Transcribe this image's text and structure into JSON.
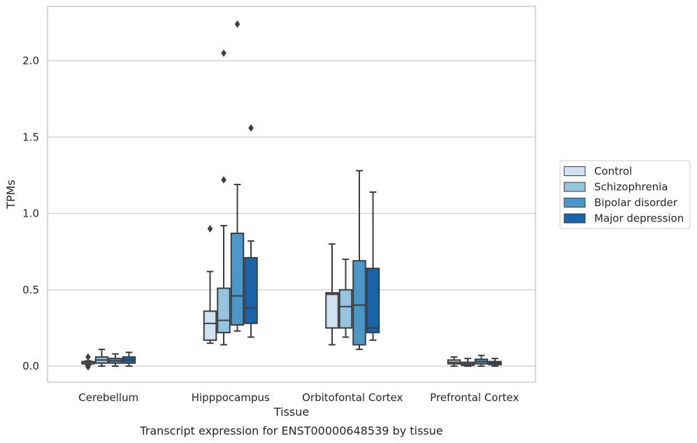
{
  "chart_data": {
    "type": "box",
    "title": "",
    "caption": "Transcript expression for ENST00000648539 by tissue",
    "xlabel": "Tissue",
    "ylabel": "TPMs",
    "ylim": [
      -0.11,
      2.35
    ],
    "yticks": [
      0.0,
      0.5,
      1.0,
      1.5,
      2.0
    ],
    "ytick_labels": [
      "0.0",
      "0.5",
      "1.0",
      "1.5",
      "2.0"
    ],
    "grid": "horizontal",
    "legend_position": "right",
    "categories": [
      "Cerebellum",
      "Hipppocampus",
      "Orbitofontal Cortex",
      "Prefrontal Cortex"
    ],
    "series": [
      {
        "name": "Control",
        "color": "#d0e1f2",
        "boxes": [
          {
            "whislo": 0.01,
            "q1": 0.015,
            "med": 0.025,
            "q3": 0.03,
            "whishi": 0.035,
            "fliers": [
              0.06,
              0.0,
              -0.005
            ]
          },
          {
            "whislo": 0.15,
            "q1": 0.17,
            "med": 0.28,
            "q3": 0.36,
            "whishi": 0.62,
            "fliers": [
              0.9
            ]
          },
          {
            "whislo": 0.14,
            "q1": 0.25,
            "med": 0.47,
            "q3": 0.48,
            "whishi": 0.8,
            "fliers": []
          },
          {
            "whislo": 0.0,
            "q1": 0.015,
            "med": 0.025,
            "q3": 0.04,
            "whishi": 0.06,
            "fliers": []
          }
        ]
      },
      {
        "name": "Schizophrenia",
        "color": "#94c4df",
        "boxes": [
          {
            "whislo": 0.0,
            "q1": 0.02,
            "med": 0.04,
            "q3": 0.06,
            "whishi": 0.11,
            "fliers": []
          },
          {
            "whislo": 0.14,
            "q1": 0.22,
            "med": 0.3,
            "q3": 0.51,
            "whishi": 0.92,
            "fliers": [
              1.22,
              2.05
            ]
          },
          {
            "whislo": 0.19,
            "q1": 0.25,
            "med": 0.39,
            "q3": 0.5,
            "whishi": 0.7,
            "fliers": []
          },
          {
            "whislo": 0.0,
            "q1": 0.005,
            "med": 0.015,
            "q3": 0.025,
            "whishi": 0.05,
            "fliers": []
          }
        ]
      },
      {
        "name": "Bipolar disorder",
        "color": "#4a98c9",
        "boxes": [
          {
            "whislo": 0.0,
            "q1": 0.02,
            "med": 0.035,
            "q3": 0.05,
            "whishi": 0.08,
            "fliers": []
          },
          {
            "whislo": 0.23,
            "q1": 0.27,
            "med": 0.46,
            "q3": 0.87,
            "whishi": 1.19,
            "fliers": [
              2.24
            ]
          },
          {
            "whislo": 0.11,
            "q1": 0.14,
            "med": 0.4,
            "q3": 0.69,
            "whishi": 1.28,
            "fliers": []
          },
          {
            "whislo": 0.0,
            "q1": 0.015,
            "med": 0.03,
            "q3": 0.045,
            "whishi": 0.07,
            "fliers": []
          }
        ]
      },
      {
        "name": "Major depression",
        "color": "#1764ab",
        "boxes": [
          {
            "whislo": 0.0,
            "q1": 0.02,
            "med": 0.04,
            "q3": 0.06,
            "whishi": 0.09,
            "fliers": []
          },
          {
            "whislo": 0.19,
            "q1": 0.28,
            "med": 0.38,
            "q3": 0.71,
            "whishi": 0.82,
            "fliers": [
              1.56
            ]
          },
          {
            "whislo": 0.17,
            "q1": 0.22,
            "med": 0.25,
            "q3": 0.64,
            "whishi": 1.14,
            "fliers": []
          },
          {
            "whislo": 0.0,
            "q1": 0.01,
            "med": 0.02,
            "q3": 0.03,
            "whishi": 0.05,
            "fliers": []
          }
        ]
      }
    ],
    "colors": {
      "grid": "#cccccc",
      "frame": "#cccccc",
      "line": "#3d3d3d",
      "text": "#262626",
      "legend_border": "#cccccc"
    }
  }
}
